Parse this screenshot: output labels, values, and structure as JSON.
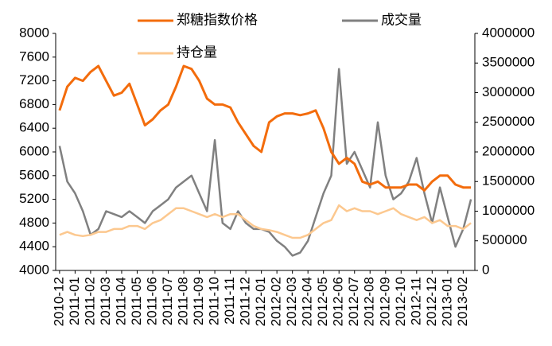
{
  "chart_data": {
    "type": "line",
    "categories": [
      "2010-12",
      null,
      "2011-01",
      null,
      "2011-02",
      null,
      "2011-03",
      null,
      "2011-04",
      null,
      "2011-05",
      null,
      "2011-06",
      null,
      "2011-07",
      null,
      "2011-08",
      null,
      "2011-09",
      null,
      "2011-10",
      null,
      "2011-11",
      null,
      "2011-12",
      null,
      "2012-01",
      null,
      "2012-02",
      null,
      "2012-03",
      null,
      "2012-04",
      null,
      "2012-05",
      null,
      "2012-06",
      null,
      "2012-07",
      null,
      "2012-08",
      null,
      "2012-09",
      null,
      "2012-10",
      null,
      "2012-11",
      null,
      "2012-12",
      null,
      "2013-01",
      null,
      "2013-02",
      null
    ],
    "series": [
      {
        "name": "郑糖指数价格",
        "color": "#f36c0c",
        "axis": "y",
        "values": [
          6700,
          7100,
          7250,
          7200,
          7350,
          7450,
          7200,
          6950,
          7000,
          7150,
          6800,
          6450,
          6550,
          6700,
          6800,
          7100,
          7450,
          7400,
          7200,
          6900,
          6800,
          6800,
          6750,
          6500,
          6300,
          6100,
          6000,
          6500,
          6600,
          6650,
          6650,
          6620,
          6650,
          6700,
          6400,
          6000,
          5800,
          5900,
          5800,
          5500,
          5450,
          5500,
          5400,
          5400,
          5400,
          5450,
          5450,
          5350,
          5500,
          5600,
          5600,
          5450,
          5400,
          5400
        ]
      },
      {
        "name": "成交量",
        "color": "#808080",
        "axis": "y2",
        "values": [
          2100000,
          1500000,
          1300000,
          1000000,
          600000,
          700000,
          1000000,
          950000,
          900000,
          1000000,
          900000,
          800000,
          1000000,
          1100000,
          1200000,
          1400000,
          1500000,
          1600000,
          1300000,
          1000000,
          2200000,
          800000,
          700000,
          1000000,
          800000,
          700000,
          700000,
          650000,
          500000,
          400000,
          250000,
          300000,
          500000,
          900000,
          1300000,
          1600000,
          3400000,
          1800000,
          2000000,
          1700000,
          1400000,
          2500000,
          1600000,
          1200000,
          1300000,
          1500000,
          1900000,
          1300000,
          800000,
          1400000,
          900000,
          400000,
          700000,
          1200000
        ]
      },
      {
        "name": "持仓量",
        "color": "#fcc88f",
        "axis": "y2",
        "values": [
          600000,
          650000,
          600000,
          580000,
          600000,
          650000,
          650000,
          700000,
          700000,
          750000,
          750000,
          700000,
          800000,
          850000,
          950000,
          1050000,
          1050000,
          1000000,
          950000,
          900000,
          950000,
          900000,
          950000,
          950000,
          850000,
          750000,
          700000,
          680000,
          650000,
          600000,
          550000,
          550000,
          600000,
          700000,
          800000,
          850000,
          1100000,
          1000000,
          1050000,
          1000000,
          1000000,
          950000,
          1000000,
          1050000,
          950000,
          900000,
          850000,
          900000,
          800000,
          850000,
          750000,
          750000,
          700000,
          800000
        ]
      }
    ],
    "ylim": [
      4000,
      8000
    ],
    "yticks": [
      4000,
      4400,
      4800,
      5200,
      5600,
      6000,
      6400,
      6800,
      7200,
      7600,
      8000
    ],
    "y2lim": [
      0,
      4000000
    ],
    "y2ticks": [
      0,
      500000,
      1000000,
      1500000,
      2000000,
      2500000,
      3000000,
      3500000,
      4000000
    ],
    "grid": false
  }
}
